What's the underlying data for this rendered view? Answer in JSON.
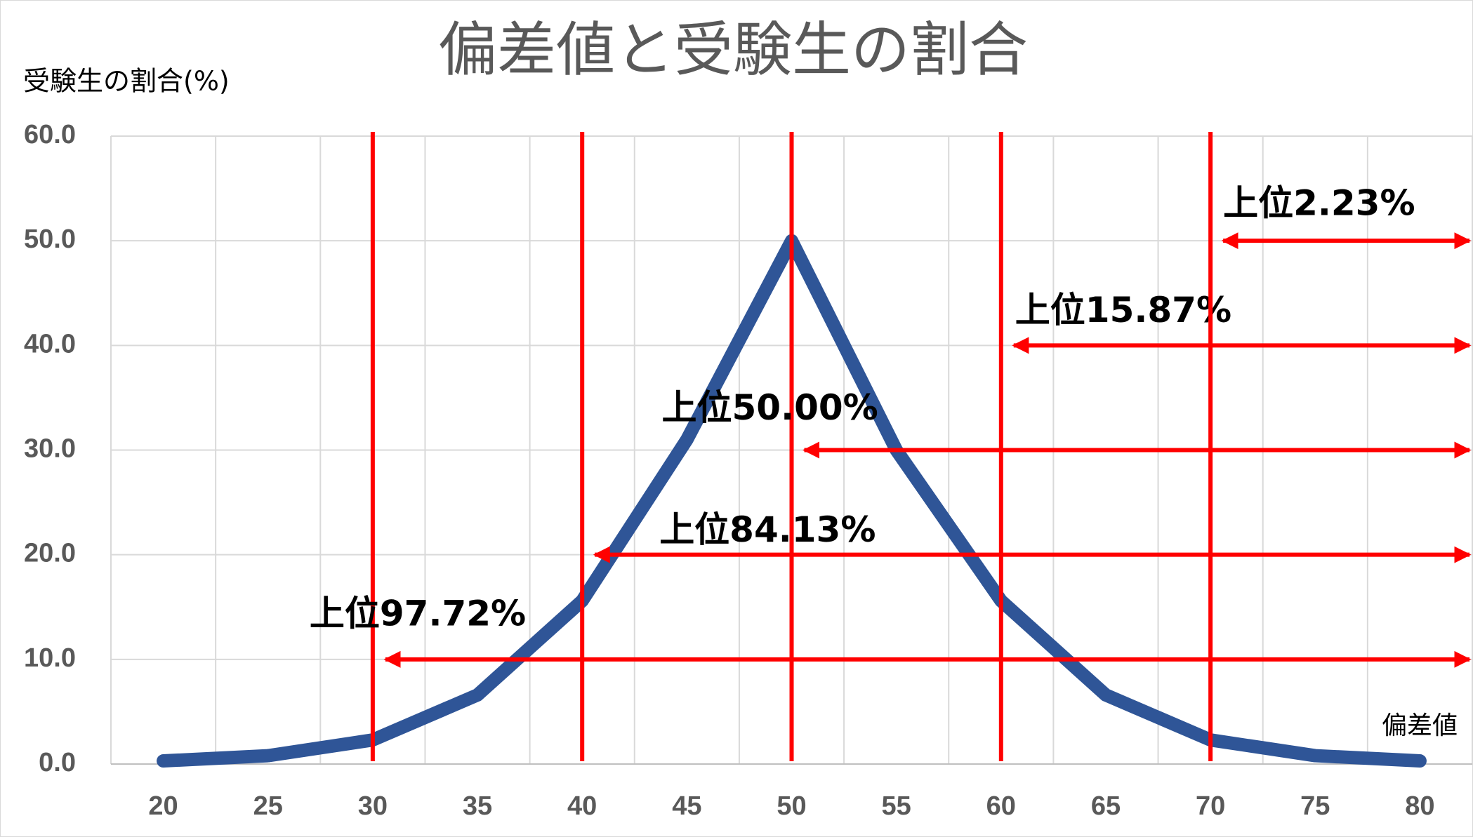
{
  "chart_data": {
    "type": "line",
    "title": "偏差値と受験生の割合",
    "y_label": "受験生の割合(%)",
    "x_label": "偏差値",
    "x": [
      20,
      25,
      30,
      35,
      40,
      45,
      50,
      55,
      60,
      65,
      70,
      75,
      80
    ],
    "series": [
      {
        "name": "受験生の割合",
        "color": "#2f5597",
        "values": [
          0.3,
          0.8,
          2.3,
          6.6,
          15.6,
          31,
          50,
          30,
          15.6,
          6.6,
          2.3,
          0.8,
          0.3
        ]
      }
    ],
    "xlim": [
      17.5,
      82.5
    ],
    "xticks": [
      20,
      25,
      30,
      35,
      40,
      45,
      50,
      55,
      60,
      65,
      70,
      75,
      80
    ],
    "ylim": [
      0,
      60
    ],
    "yticks": [
      {
        "value": 0,
        "label": "0.0"
      },
      {
        "value": 10,
        "label": "10.0"
      },
      {
        "value": 20,
        "label": "20.0"
      },
      {
        "value": 30,
        "label": "30.0"
      },
      {
        "value": 40,
        "label": "40.0"
      },
      {
        "value": 50,
        "label": "50.0"
      },
      {
        "value": 60,
        "label": "60.0"
      }
    ],
    "grid": true,
    "annotation_color": "#ff0000",
    "annotations": [
      {
        "text": "上位97.72%",
        "x": 30,
        "y": 10
      },
      {
        "text": "上位84.13%",
        "x": 40,
        "y": 20
      },
      {
        "text": "上位50.00%",
        "x": 50,
        "y": 30
      },
      {
        "text": "上位15.87%",
        "x": 60,
        "y": 40
      },
      {
        "text": "上位2.23%",
        "x": 70,
        "y": 50
      }
    ]
  }
}
